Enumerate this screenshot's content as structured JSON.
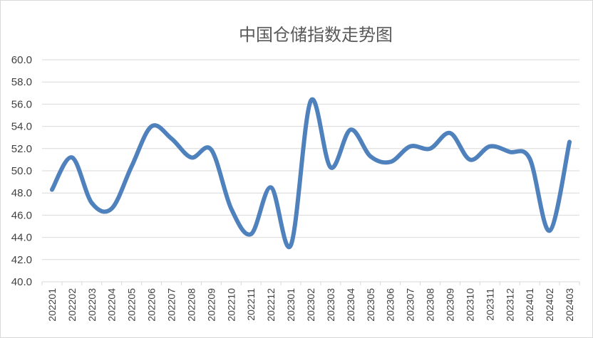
{
  "chart_data": {
    "type": "line",
    "title": "中国仓储指数走势图",
    "xlabel": "",
    "ylabel": "",
    "ylim": [
      40.0,
      60.0
    ],
    "yticks": [
      "40.0",
      "42.0",
      "44.0",
      "46.0",
      "48.0",
      "50.0",
      "52.0",
      "54.0",
      "56.0",
      "58.0",
      "60.0"
    ],
    "grid": true,
    "legend": "none",
    "color": "#4F81BD",
    "categories": [
      "202201",
      "202202",
      "202203",
      "202204",
      "202205",
      "202206",
      "202207",
      "202208",
      "202209",
      "202210",
      "202211",
      "202212",
      "202301",
      "202302",
      "202303",
      "202304",
      "202305",
      "202306",
      "202307",
      "202308",
      "202309",
      "202310",
      "202311",
      "202312",
      "202401",
      "202402",
      "202403"
    ],
    "values": [
      48.3,
      51.2,
      47.1,
      46.6,
      50.4,
      54.0,
      52.9,
      51.2,
      51.9,
      46.6,
      44.3,
      48.5,
      43.3,
      56.3,
      50.3,
      53.7,
      51.3,
      50.8,
      52.2,
      52.0,
      53.4,
      51.0,
      52.2,
      51.7,
      51.1,
      44.6,
      52.6
    ]
  }
}
